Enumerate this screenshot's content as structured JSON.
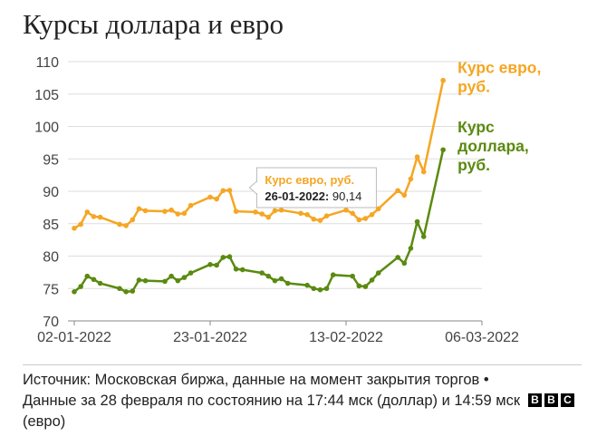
{
  "title": "Курсы доллара и евро",
  "chart_data": {
    "type": "line",
    "title": "Курсы доллара и евро",
    "xlabel": "",
    "ylabel": "",
    "ylim": [
      70,
      110
    ],
    "yticks": [
      70,
      75,
      80,
      85,
      90,
      95,
      100,
      105,
      110
    ],
    "xticks": [
      "02-01-2022",
      "23-01-2022",
      "13-02-2022",
      "06-03-2022"
    ],
    "xlim": [
      "2022-01-02",
      "2022-03-06"
    ],
    "grid": "horizontal",
    "legend": "inline-right",
    "series": [
      {
        "name": "Курс евро, руб.",
        "label_lines": [
          "Курс евро,",
          "руб."
        ],
        "color": "#f5a623",
        "points": [
          [
            "2022-01-02",
            84.3
          ],
          [
            "2022-01-03",
            84.9
          ],
          [
            "2022-01-04",
            86.8
          ],
          [
            "2022-01-05",
            86.1
          ],
          [
            "2022-01-06",
            86.0
          ],
          [
            "2022-01-09",
            84.9
          ],
          [
            "2022-01-10",
            84.7
          ],
          [
            "2022-01-11",
            85.6
          ],
          [
            "2022-01-12",
            87.3
          ],
          [
            "2022-01-13",
            87.0
          ],
          [
            "2022-01-16",
            86.9
          ],
          [
            "2022-01-17",
            87.1
          ],
          [
            "2022-01-18",
            86.5
          ],
          [
            "2022-01-19",
            86.6
          ],
          [
            "2022-01-20",
            87.8
          ],
          [
            "2022-01-23",
            89.1
          ],
          [
            "2022-01-24",
            88.8
          ],
          [
            "2022-01-25",
            90.1
          ],
          [
            "2022-01-26",
            90.14
          ],
          [
            "2022-01-27",
            86.9
          ],
          [
            "2022-01-30",
            86.8
          ],
          [
            "2022-01-31",
            86.5
          ],
          [
            "2022-02-01",
            86.0
          ],
          [
            "2022-02-02",
            87.0
          ],
          [
            "2022-02-03",
            87.1
          ],
          [
            "2022-02-06",
            86.6
          ],
          [
            "2022-02-07",
            86.4
          ],
          [
            "2022-02-08",
            85.7
          ],
          [
            "2022-02-09",
            85.5
          ],
          [
            "2022-02-10",
            86.2
          ],
          [
            "2022-02-13",
            87.1
          ],
          [
            "2022-02-14",
            86.6
          ],
          [
            "2022-02-15",
            85.6
          ],
          [
            "2022-02-16",
            85.8
          ],
          [
            "2022-02-17",
            86.4
          ],
          [
            "2022-02-18",
            87.3
          ],
          [
            "2022-02-21",
            90.1
          ],
          [
            "2022-02-22",
            89.4
          ],
          [
            "2022-02-23",
            91.9
          ],
          [
            "2022-02-24",
            95.3
          ],
          [
            "2022-02-25",
            93.0
          ],
          [
            "2022-02-28",
            107.1
          ]
        ]
      },
      {
        "name": "Курс доллара, руб.",
        "label_lines": [
          "Курс",
          "доллара,",
          "руб."
        ],
        "color": "#5a8a10",
        "points": [
          [
            "2022-01-02",
            74.5
          ],
          [
            "2022-01-03",
            75.3
          ],
          [
            "2022-01-04",
            76.9
          ],
          [
            "2022-01-05",
            76.4
          ],
          [
            "2022-01-06",
            75.8
          ],
          [
            "2022-01-09",
            75.0
          ],
          [
            "2022-01-10",
            74.5
          ],
          [
            "2022-01-11",
            74.6
          ],
          [
            "2022-01-12",
            76.3
          ],
          [
            "2022-01-13",
            76.2
          ],
          [
            "2022-01-16",
            76.1
          ],
          [
            "2022-01-17",
            76.9
          ],
          [
            "2022-01-18",
            76.2
          ],
          [
            "2022-01-19",
            76.7
          ],
          [
            "2022-01-20",
            77.4
          ],
          [
            "2022-01-23",
            78.7
          ],
          [
            "2022-01-24",
            78.6
          ],
          [
            "2022-01-25",
            79.8
          ],
          [
            "2022-01-26",
            79.9
          ],
          [
            "2022-01-27",
            78.0
          ],
          [
            "2022-01-28",
            77.9
          ],
          [
            "2022-01-31",
            77.4
          ],
          [
            "2022-02-01",
            76.9
          ],
          [
            "2022-02-02",
            76.2
          ],
          [
            "2022-02-03",
            76.5
          ],
          [
            "2022-02-04",
            75.8
          ],
          [
            "2022-02-07",
            75.5
          ],
          [
            "2022-02-08",
            75.0
          ],
          [
            "2022-02-09",
            74.8
          ],
          [
            "2022-02-10",
            75.0
          ],
          [
            "2022-02-11",
            77.1
          ],
          [
            "2022-02-14",
            76.9
          ],
          [
            "2022-02-15",
            75.4
          ],
          [
            "2022-02-16",
            75.3
          ],
          [
            "2022-02-17",
            76.3
          ],
          [
            "2022-02-18",
            77.4
          ],
          [
            "2022-02-21",
            79.8
          ],
          [
            "2022-02-22",
            78.9
          ],
          [
            "2022-02-23",
            81.2
          ],
          [
            "2022-02-24",
            85.3
          ],
          [
            "2022-02-25",
            83.0
          ],
          [
            "2022-02-28",
            96.4
          ]
        ]
      }
    ],
    "tooltip": {
      "series": "Курс евро, руб.",
      "title": "Курс евро, руб.",
      "date_label": "26-01-2022:",
      "value_label": "90,14",
      "anchor": [
        "2022-01-26",
        90.14
      ]
    }
  },
  "footer": {
    "source": "Источник: Московская биржа, данные на момент закрытия торгов • Данные за 28 февраля по состоянию на 17:44 мск (доллар) и 14:59 мск (евро)",
    "logo_letters": [
      "B",
      "B",
      "C"
    ]
  }
}
